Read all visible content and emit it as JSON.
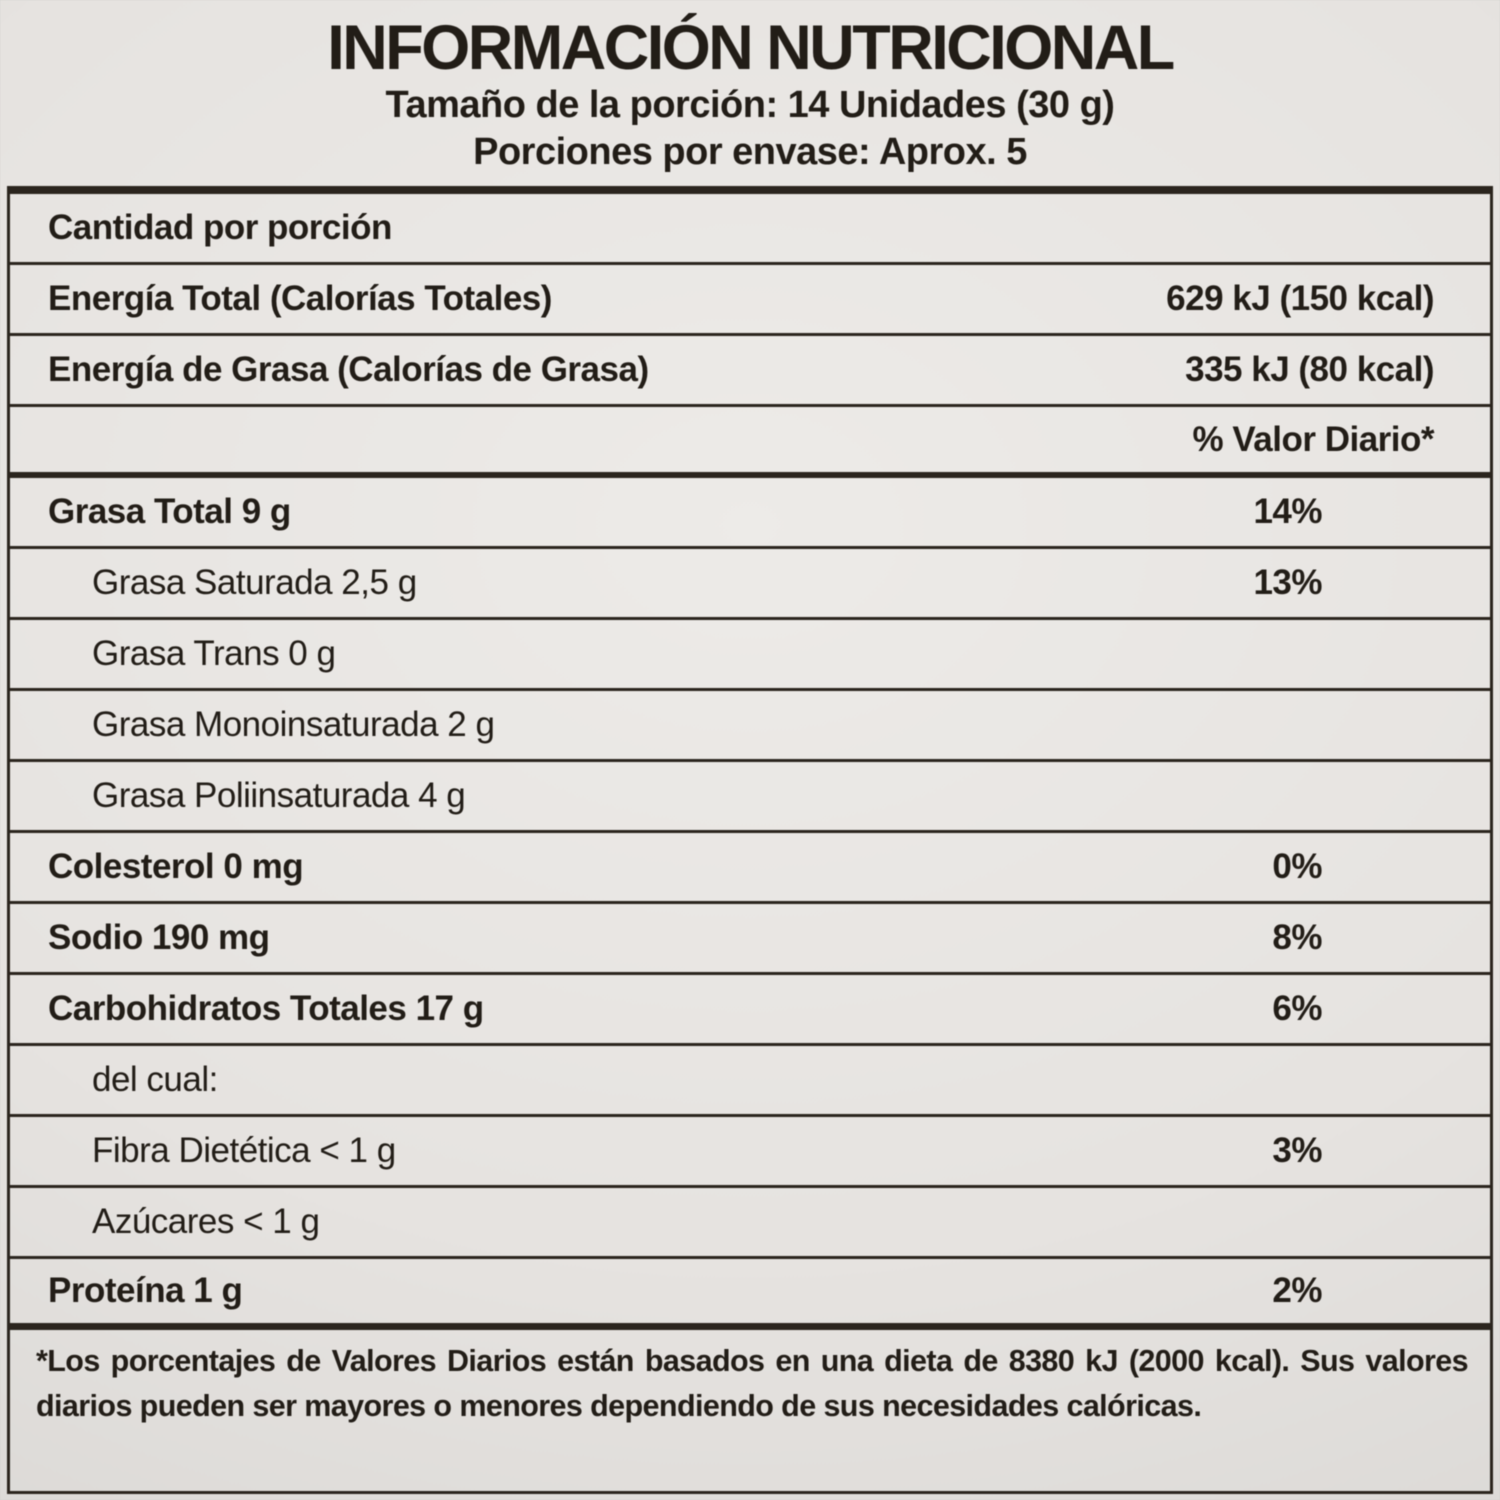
{
  "header": {
    "title": "INFORMACIÓN NUTRICIONAL",
    "serving_size": "Tamaño de la porción: 14 Unidades (30 g)",
    "servings_per_container": "Porciones por envase: Aprox. 5"
  },
  "table": {
    "rows": [
      {
        "name": "cantidad-por-porcion",
        "label": "Cantidad por porción",
        "value": "",
        "bold": true,
        "indent": false,
        "value_style": ""
      },
      {
        "name": "energia-total",
        "label": "Energía Total (Calorías Totales)",
        "value": "629 kJ (150 kcal)",
        "bold": true,
        "indent": false,
        "value_style": "energy"
      },
      {
        "name": "energia-de-grasa",
        "label": "Energía de Grasa (Calorías de Grasa)",
        "value": "335 kJ (80 kcal)",
        "bold": true,
        "indent": false,
        "value_style": "energy"
      },
      {
        "name": "valor-diario-header",
        "label": "",
        "value": "% Valor Diario*",
        "bold": true,
        "indent": false,
        "value_style": "energy"
      },
      {
        "name": "grasa-total",
        "label": "Grasa Total 9 g",
        "value": "14%",
        "bold": true,
        "indent": false,
        "value_style": "percent"
      },
      {
        "name": "grasa-saturada",
        "label": "Grasa Saturada 2,5 g",
        "value": "13%",
        "bold": false,
        "indent": true,
        "value_style": "percent"
      },
      {
        "name": "grasa-trans",
        "label": "Grasa Trans 0 g",
        "value": "",
        "bold": false,
        "indent": true,
        "value_style": ""
      },
      {
        "name": "grasa-monoinsaturada",
        "label": "Grasa Monoinsaturada 2 g",
        "value": "",
        "bold": false,
        "indent": true,
        "value_style": ""
      },
      {
        "name": "grasa-poliinsaturada",
        "label": "Grasa Poliinsaturada 4 g",
        "value": "",
        "bold": false,
        "indent": true,
        "value_style": ""
      },
      {
        "name": "colesterol",
        "label": "Colesterol 0 mg",
        "value": "0%",
        "bold": true,
        "indent": false,
        "value_style": "percent"
      },
      {
        "name": "sodio",
        "label": "Sodio 190 mg",
        "value": "8%",
        "bold": true,
        "indent": false,
        "value_style": "percent"
      },
      {
        "name": "carbohidratos-totales",
        "label": "Carbohidratos Totales 17 g",
        "value": "6%",
        "bold": true,
        "indent": false,
        "value_style": "percent"
      },
      {
        "name": "del-cual",
        "label": "del cual:",
        "value": "",
        "bold": false,
        "indent": true,
        "value_style": ""
      },
      {
        "name": "fibra-dietetica",
        "label": "Fibra Dietética < 1 g",
        "value": "3%",
        "bold": false,
        "indent": true,
        "value_style": "percent"
      },
      {
        "name": "azucares",
        "label": "Azúcares < 1 g",
        "value": "",
        "bold": false,
        "indent": true,
        "value_style": ""
      },
      {
        "name": "proteina",
        "label": "Proteína 1 g",
        "value": "2%",
        "bold": true,
        "indent": false,
        "value_style": "percent"
      }
    ]
  },
  "footnote": "*Los porcentajes de Valores Diarios están basados en una dieta de 8380 kJ (2000 kcal). Sus valores diarios pueden ser mayores o menores dependiendo de sus necesidades calóricas.",
  "colors": {
    "background": "#e6e3e0",
    "text": "#221d17",
    "border": "#2b251e"
  }
}
